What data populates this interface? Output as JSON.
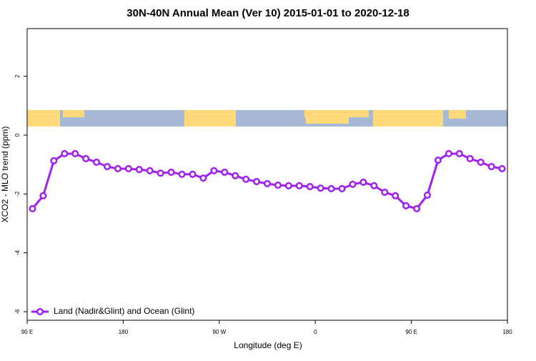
{
  "chart_data": {
    "type": "line",
    "title": "30N-40N Annual Mean (Ver 10)   2015-01-01 to 2020-12-18",
    "xlabel": "Longitude (deg E)",
    "ylabel": "XCO2 - MLO trend (ppm)",
    "x": [
      95,
      105,
      115,
      125,
      135,
      145,
      155,
      165,
      175,
      185,
      195,
      205,
      215,
      225,
      235,
      245,
      255,
      265,
      275,
      285,
      295,
      305,
      315,
      325,
      335,
      345,
      355,
      365,
      375,
      385,
      395,
      405,
      415,
      425,
      435,
      445,
      455,
      465,
      475,
      485,
      495,
      505,
      515,
      525,
      535
    ],
    "series": [
      {
        "name": "Land (Nadir&Glint) and Ocean (Glint)",
        "color": "#a020f0",
        "values": [
          -2.5,
          -2.06,
          -0.87,
          -0.63,
          -0.63,
          -0.8,
          -0.92,
          -1.07,
          -1.14,
          -1.14,
          -1.17,
          -1.21,
          -1.29,
          -1.26,
          -1.33,
          -1.33,
          -1.46,
          -1.21,
          -1.26,
          -1.38,
          -1.5,
          -1.58,
          -1.65,
          -1.7,
          -1.72,
          -1.72,
          -1.75,
          -1.8,
          -1.82,
          -1.82,
          -1.67,
          -1.6,
          -1.72,
          -1.94,
          -2.06,
          -2.4,
          -2.5,
          -2.04,
          -0.85,
          -0.63,
          -0.63,
          -0.8,
          -0.92,
          -1.07,
          -1.14
        ]
      }
    ],
    "xlim": [
      90,
      540
    ],
    "xticks": [
      {
        "value": 90,
        "label": "90 E"
      },
      180,
      {
        "value": 270,
        "label": "90 W"
      },
      {
        "value": 360,
        "label": "0"
      },
      {
        "value": 450,
        "label": "90 E"
      },
      {
        "value": 540,
        "label": "180"
      }
    ],
    "ylim": [
      -6.29,
      3.62
    ],
    "yticks": [
      2,
      0,
      -2,
      -4,
      -6
    ],
    "legend": "bottom-left"
  }
}
